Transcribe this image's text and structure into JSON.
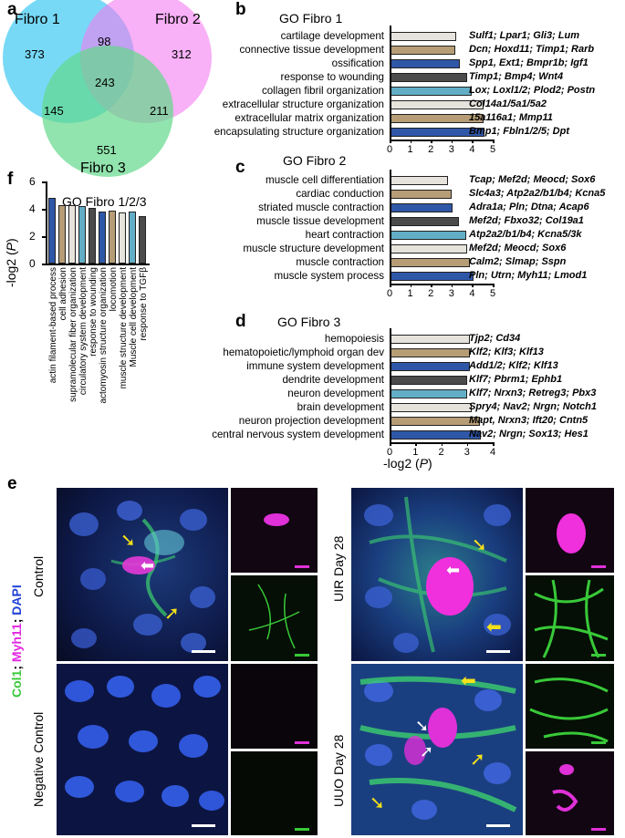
{
  "panels": {
    "a": "a",
    "b": "b",
    "c": "c",
    "d": "d",
    "e": "e",
    "f": "f"
  },
  "venn": {
    "labels": [
      "Fibro 1",
      "Fibro 2",
      "Fibro 3"
    ],
    "counts": {
      "only1": "373",
      "only2": "312",
      "only3": "551",
      "n12": "98",
      "n13": "145",
      "n23": "211",
      "n123": "243"
    },
    "colors": [
      "#5fd2f4",
      "#f47cf0",
      "#63d98a"
    ]
  },
  "go_fibro1": {
    "title": "GO Fibro 1",
    "terms": [
      {
        "label": "cartilage development",
        "value": 3.25,
        "genes": "Sulf1; Lpar1; Gli3; Lum",
        "color": "#e6e3dc"
      },
      {
        "label": "connective tissue development",
        "value": 3.2,
        "genes": "Dcn; Hoxd11; Timp1; Rarb",
        "color": "#b69d76"
      },
      {
        "label": "ossification",
        "value": 3.4,
        "genes": "Spp1, Ext1; Bmpr1b; Igf1",
        "color": "#2f57a8"
      },
      {
        "label": "response to wounding",
        "value": 3.75,
        "genes": "Timp1; Bmp4; Wnt4",
        "color": "#4b4b4b"
      },
      {
        "label": "collagen fibril organization",
        "value": 4.0,
        "genes": "Lox; Loxl1/2; Plod2; Postn",
        "color": "#62aec6"
      },
      {
        "label": "extracellular structure organization",
        "value": 4.55,
        "genes": "Col14a1/5a1/5a2",
        "color": "#e6e3dc"
      },
      {
        "label": "extracellular matrix organization",
        "value": 4.55,
        "genes": "15a116a1; Mmp11",
        "color": "#b69d76"
      },
      {
        "label": "encapsulating structure organization",
        "value": 4.6,
        "genes": "Bmp1; Fbln1/2/5; Dpt",
        "color": "#2f57a8"
      }
    ],
    "ticks": [
      "0",
      "1",
      "2",
      "3",
      "4",
      "5"
    ]
  },
  "go_fibro2": {
    "title": "GO Fibro 2",
    "terms": [
      {
        "label": "muscle cell differentiation",
        "value": 2.85,
        "genes": "Tcap; Mef2d; Meocd; Sox6",
        "color": "#e6e3dc"
      },
      {
        "label": "cardiac conduction",
        "value": 3.0,
        "genes": "Slc4a3; Atp2a2/b1/b4; Kcna5",
        "color": "#b69d76"
      },
      {
        "label": "striated muscle contraction",
        "value": 3.05,
        "genes": "Adra1a; Pln; Dtna; Acap6",
        "color": "#2f57a8"
      },
      {
        "label": "muscle tissue development",
        "value": 3.35,
        "genes": "Mef2d; Fbxo32; Col19a1",
        "color": "#4b4b4b"
      },
      {
        "label": "heart contraction",
        "value": 3.7,
        "genes": "Atp2a2/b1/b4; Kcna5/3k",
        "color": "#62aec6"
      },
      {
        "label": "muscle structure development",
        "value": 3.75,
        "genes": "Mef2d; Meocd; Sox6",
        "color": "#e6e3dc"
      },
      {
        "label": "muscle contraction",
        "value": 3.9,
        "genes": "Calm2; Slmap; Sspn",
        "color": "#b69d76"
      },
      {
        "label": "muscle system process",
        "value": 4.05,
        "genes": "Pln; Utrn; Myh11; Lmod1",
        "color": "#2f57a8"
      }
    ],
    "ticks": [
      "0",
      "1",
      "2",
      "3",
      "4",
      "5"
    ]
  },
  "go_fibro3": {
    "title": "GO Fibro 3",
    "terms": [
      {
        "label": "hemopoiesis",
        "value": 3.1,
        "genes": "Tjp2; Cd34",
        "color": "#e6e3dc"
      },
      {
        "label": "hematopoietic/lymphoid organ dev",
        "value": 3.1,
        "genes": "Klf2; Klf3; Klf13",
        "color": "#b69d76"
      },
      {
        "label": "immune system development",
        "value": 3.1,
        "genes": "Add1/2; Klf2; Klf13",
        "color": "#2f57a8"
      },
      {
        "label": "dendrite development",
        "value": 3.0,
        "genes": "Klf7; Pbrm1; Ephb1",
        "color": "#4b4b4b"
      },
      {
        "label": "neuron development",
        "value": 3.0,
        "genes": "Klf7; Nrxn3; Retreg3; Pbx3",
        "color": "#62aec6"
      },
      {
        "label": "brain development",
        "value": 3.2,
        "genes": "Spry4; Nav2; Nrgn; Notch1",
        "color": "#e6e3dc"
      },
      {
        "label": "neuron projection development",
        "value": 3.5,
        "genes": "Mapt, Nrxn3; Ift20; Cntn5",
        "color": "#b69d76"
      },
      {
        "label": "central nervous system development",
        "value": 3.55,
        "genes": "Nav2; Nrgn; Sox13; Hes1",
        "color": "#2f57a8"
      }
    ],
    "ticks": [
      "0",
      "1",
      "2",
      "3",
      "4"
    ],
    "xlabel_prefix": "-log2 (",
    "xlabel_var": "P",
    "xlabel_suffix": ")"
  },
  "go_combined": {
    "title": "GO Fibro 1/2/3",
    "ylabel_prefix": "-log2 (",
    "ylabel_var": "P",
    "ylabel_suffix": ")",
    "yticks": [
      "6",
      "4",
      "2",
      "0"
    ],
    "terms": [
      {
        "label": "actin filament-based process",
        "value": 4.8,
        "color": "#2f57a8"
      },
      {
        "label": "cell adhesion",
        "value": 4.3,
        "color": "#b69d76"
      },
      {
        "label": "supramolecular fiber organization",
        "value": 4.25,
        "color": "#e6e3dc"
      },
      {
        "label": "circulatory system development",
        "value": 4.22,
        "color": "#62aec6"
      },
      {
        "label": "response to wounding",
        "value": 4.05,
        "color": "#4b4b4b"
      },
      {
        "label": "actomyosin structure organization",
        "value": 3.82,
        "color": "#2f57a8"
      },
      {
        "label": "locomotion",
        "value": 3.85,
        "color": "#b69d76"
      },
      {
        "label": "muscle structure development",
        "value": 3.75,
        "color": "#e6e3dc"
      },
      {
        "label": "Muscle cell development",
        "value": 3.78,
        "color": "#62aec6"
      },
      {
        "label": "response to TGFβ",
        "value": 3.48,
        "color": "#4b4b4b"
      }
    ]
  },
  "panel_e": {
    "stain_col1": "Col1",
    "stain_sep1": "; ",
    "stain_myh11": "Myh11",
    "stain_sep2": "; ",
    "stain_dapi": "DAPI",
    "conditions": [
      "Control",
      "Negative Control",
      "UIR Day 28",
      "UUO Day 28"
    ]
  }
}
